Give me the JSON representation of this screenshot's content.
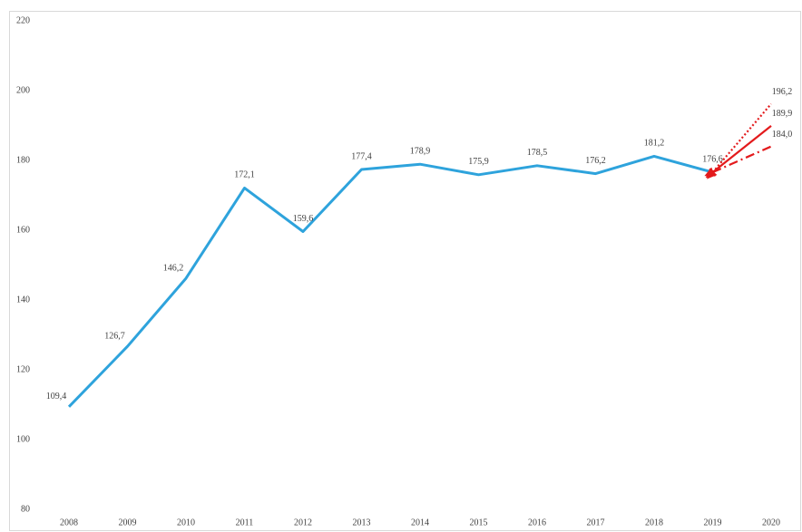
{
  "chart_data": {
    "type": "line",
    "categories": [
      "2008",
      "2009",
      "2010",
      "2011",
      "2012",
      "2013",
      "2014",
      "2015",
      "2016",
      "2017",
      "2018",
      "2019",
      "2020"
    ],
    "series": [
      {
        "color": "#2ea3dc",
        "style": "solid",
        "values": [
          109.4,
          126.7,
          146.2,
          172.1,
          159.6,
          177.4,
          178.9,
          175.9,
          178.5,
          176.2,
          181.2,
          176.6,
          null
        ],
        "value_labels": [
          "109,4",
          "126,7",
          "146,2",
          "172,1",
          "159,6",
          "177,4",
          "178,9",
          "175,9",
          "178,5",
          "176,2",
          "181,2",
          "176,6",
          null
        ]
      },
      {
        "color": "#e31a1c",
        "style": "dotted",
        "values": [
          null,
          null,
          null,
          null,
          null,
          null,
          null,
          null,
          null,
          null,
          null,
          176.6,
          196.2
        ],
        "value_labels": [
          null,
          null,
          null,
          null,
          null,
          null,
          null,
          null,
          null,
          null,
          null,
          null,
          "196,2"
        ]
      },
      {
        "color": "#e31a1c",
        "style": "solid",
        "values": [
          null,
          null,
          null,
          null,
          null,
          null,
          null,
          null,
          null,
          null,
          null,
          176.6,
          189.9
        ],
        "value_labels": [
          null,
          null,
          null,
          null,
          null,
          null,
          null,
          null,
          null,
          null,
          null,
          null,
          "189,9"
        ]
      },
      {
        "color": "#e31a1c",
        "style": "dashdot",
        "values": [
          null,
          null,
          null,
          null,
          null,
          null,
          null,
          null,
          null,
          null,
          null,
          176.6,
          184.0
        ],
        "value_labels": [
          null,
          null,
          null,
          null,
          null,
          null,
          null,
          null,
          null,
          null,
          null,
          null,
          "184,0"
        ]
      }
    ],
    "ylim": [
      80,
      220
    ],
    "yticks": [
      80,
      100,
      120,
      140,
      160,
      180,
      200,
      220
    ],
    "grid": false
  }
}
